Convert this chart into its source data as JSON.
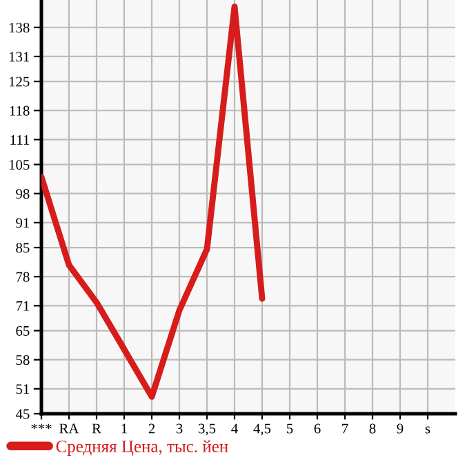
{
  "chart_data": {
    "type": "line",
    "categories": [
      "***",
      "RA",
      "R",
      "1",
      "2",
      "3",
      "3,5",
      "4",
      "4,5",
      "5",
      "6",
      "7",
      "8",
      "9",
      "s"
    ],
    "series": [
      {
        "name": "Средняя Цена, тыс. йен",
        "color": "#d71c1c",
        "values": [
          102,
          80.8,
          71.8,
          60.5,
          49.1,
          69.9,
          84.6,
          143,
          72.7,
          null,
          null,
          null,
          null,
          null,
          null
        ]
      }
    ],
    "ylim": [
      45,
      144.6
    ],
    "yticks": [
      45,
      51,
      58,
      65,
      71,
      78,
      85,
      91,
      98,
      105,
      111,
      118,
      125,
      131,
      138
    ],
    "grid": true,
    "legend": "bottom",
    "marker": "none",
    "line_style": "solid"
  }
}
